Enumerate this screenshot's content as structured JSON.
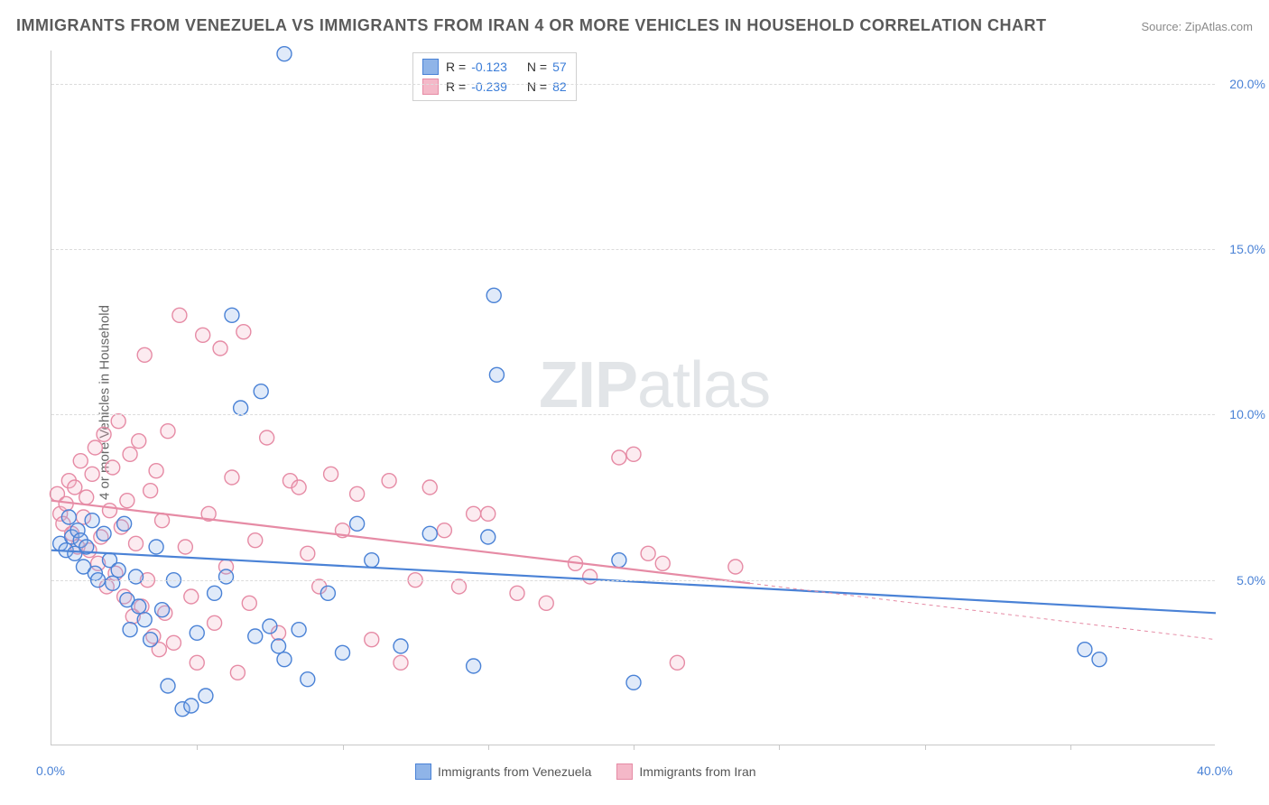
{
  "title": "IMMIGRANTS FROM VENEZUELA VS IMMIGRANTS FROM IRAN 4 OR MORE VEHICLES IN HOUSEHOLD CORRELATION CHART",
  "source_label": "Source: ",
  "source_name": "ZipAtlas.com",
  "y_axis_label": "4 or more Vehicles in Household",
  "watermark_bold": "ZIP",
  "watermark_light": "atlas",
  "chart": {
    "type": "scatter",
    "xlim": [
      0,
      40
    ],
    "ylim": [
      0,
      21
    ],
    "x_ticks": [
      0,
      40
    ],
    "x_tick_labels": [
      "0.0%",
      "40.0%"
    ],
    "x_minor_ticks": [
      5,
      10,
      15,
      20,
      25,
      30,
      35
    ],
    "y_ticks": [
      5,
      10,
      15,
      20
    ],
    "y_tick_labels": [
      "5.0%",
      "10.0%",
      "15.0%",
      "20.0%"
    ],
    "background_color": "#ffffff",
    "grid_color": "#dcdcdc",
    "axis_color": "#c8c8c8",
    "marker_radius": 8,
    "marker_stroke_width": 1.4,
    "marker_fill_opacity": 0.28,
    "line_width": 2.2,
    "series": [
      {
        "name": "Immigrants from Venezuela",
        "color_stroke": "#4a82d6",
        "color_fill": "#8fb4e8",
        "R": "-0.123",
        "N": "57",
        "trend": {
          "x1": 0,
          "y1": 5.9,
          "x2": 40,
          "y2": 4.0
        },
        "points": [
          [
            0.3,
            6.1
          ],
          [
            0.5,
            5.9
          ],
          [
            0.6,
            6.9
          ],
          [
            0.7,
            6.3
          ],
          [
            0.8,
            5.8
          ],
          [
            0.9,
            6.5
          ],
          [
            1.0,
            6.2
          ],
          [
            1.1,
            5.4
          ],
          [
            1.2,
            6.0
          ],
          [
            1.4,
            6.8
          ],
          [
            1.5,
            5.2
          ],
          [
            1.6,
            5.0
          ],
          [
            1.8,
            6.4
          ],
          [
            2.0,
            5.6
          ],
          [
            2.1,
            4.9
          ],
          [
            2.3,
            5.3
          ],
          [
            2.5,
            6.7
          ],
          [
            2.6,
            4.4
          ],
          [
            2.7,
            3.5
          ],
          [
            2.9,
            5.1
          ],
          [
            3.0,
            4.2
          ],
          [
            3.2,
            3.8
          ],
          [
            3.4,
            3.2
          ],
          [
            3.6,
            6.0
          ],
          [
            3.8,
            4.1
          ],
          [
            4.0,
            1.8
          ],
          [
            4.2,
            5.0
          ],
          [
            4.5,
            1.1
          ],
          [
            4.8,
            1.2
          ],
          [
            5.0,
            3.4
          ],
          [
            5.3,
            1.5
          ],
          [
            5.6,
            4.6
          ],
          [
            6.0,
            5.1
          ],
          [
            6.2,
            13.0
          ],
          [
            6.5,
            10.2
          ],
          [
            7.0,
            3.3
          ],
          [
            7.2,
            10.7
          ],
          [
            7.5,
            3.6
          ],
          [
            7.8,
            3.0
          ],
          [
            8.0,
            2.6
          ],
          [
            8.0,
            20.9
          ],
          [
            8.5,
            3.5
          ],
          [
            8.8,
            2.0
          ],
          [
            9.5,
            4.6
          ],
          [
            10.0,
            2.8
          ],
          [
            10.5,
            6.7
          ],
          [
            11.0,
            5.6
          ],
          [
            12.0,
            3.0
          ],
          [
            13.0,
            6.4
          ],
          [
            14.5,
            2.4
          ],
          [
            15.0,
            6.3
          ],
          [
            15.2,
            13.6
          ],
          [
            15.3,
            11.2
          ],
          [
            19.5,
            5.6
          ],
          [
            20.0,
            1.9
          ],
          [
            35.5,
            2.9
          ],
          [
            36.0,
            2.6
          ]
        ]
      },
      {
        "name": "Immigrants from Iran",
        "color_stroke": "#e68ba5",
        "color_fill": "#f4b8c8",
        "R": "-0.239",
        "N": "82",
        "trend": {
          "x1": 0,
          "y1": 7.4,
          "x2": 24,
          "y2": 4.9
        },
        "trend_ext": {
          "x1": 24,
          "y1": 4.9,
          "x2": 40,
          "y2": 3.2
        },
        "points": [
          [
            0.2,
            7.6
          ],
          [
            0.3,
            7.0
          ],
          [
            0.4,
            6.7
          ],
          [
            0.5,
            7.3
          ],
          [
            0.6,
            8.0
          ],
          [
            0.7,
            6.4
          ],
          [
            0.8,
            7.8
          ],
          [
            0.9,
            6.0
          ],
          [
            1.0,
            8.6
          ],
          [
            1.1,
            6.9
          ],
          [
            1.2,
            7.5
          ],
          [
            1.3,
            5.9
          ],
          [
            1.4,
            8.2
          ],
          [
            1.5,
            9.0
          ],
          [
            1.6,
            5.5
          ],
          [
            1.7,
            6.3
          ],
          [
            1.8,
            9.4
          ],
          [
            1.9,
            4.8
          ],
          [
            2.0,
            7.1
          ],
          [
            2.1,
            8.4
          ],
          [
            2.2,
            5.2
          ],
          [
            2.3,
            9.8
          ],
          [
            2.4,
            6.6
          ],
          [
            2.5,
            4.5
          ],
          [
            2.6,
            7.4
          ],
          [
            2.7,
            8.8
          ],
          [
            2.8,
            3.9
          ],
          [
            2.9,
            6.1
          ],
          [
            3.0,
            9.2
          ],
          [
            3.1,
            4.2
          ],
          [
            3.2,
            11.8
          ],
          [
            3.3,
            5.0
          ],
          [
            3.4,
            7.7
          ],
          [
            3.5,
            3.3
          ],
          [
            3.6,
            8.3
          ],
          [
            3.7,
            2.9
          ],
          [
            3.8,
            6.8
          ],
          [
            3.9,
            4.0
          ],
          [
            4.0,
            9.5
          ],
          [
            4.2,
            3.1
          ],
          [
            4.4,
            13.0
          ],
          [
            4.6,
            6.0
          ],
          [
            4.8,
            4.5
          ],
          [
            5.0,
            2.5
          ],
          [
            5.2,
            12.4
          ],
          [
            5.4,
            7.0
          ],
          [
            5.6,
            3.7
          ],
          [
            5.8,
            12.0
          ],
          [
            6.0,
            5.4
          ],
          [
            6.2,
            8.1
          ],
          [
            6.4,
            2.2
          ],
          [
            6.6,
            12.5
          ],
          [
            6.8,
            4.3
          ],
          [
            7.0,
            6.2
          ],
          [
            7.4,
            9.3
          ],
          [
            7.8,
            3.4
          ],
          [
            8.2,
            8.0
          ],
          [
            8.5,
            7.8
          ],
          [
            8.8,
            5.8
          ],
          [
            9.2,
            4.8
          ],
          [
            9.6,
            8.2
          ],
          [
            10.0,
            6.5
          ],
          [
            10.5,
            7.6
          ],
          [
            11.0,
            3.2
          ],
          [
            11.6,
            8.0
          ],
          [
            12.0,
            2.5
          ],
          [
            12.5,
            5.0
          ],
          [
            13.0,
            7.8
          ],
          [
            13.5,
            6.5
          ],
          [
            14.0,
            4.8
          ],
          [
            14.5,
            7.0
          ],
          [
            15.0,
            7.0
          ],
          [
            16.0,
            4.6
          ],
          [
            17.0,
            4.3
          ],
          [
            18.0,
            5.5
          ],
          [
            18.5,
            5.1
          ],
          [
            19.5,
            8.7
          ],
          [
            20.0,
            8.8
          ],
          [
            20.5,
            5.8
          ],
          [
            21.0,
            5.5
          ],
          [
            21.5,
            2.5
          ],
          [
            23.5,
            5.4
          ]
        ]
      }
    ]
  },
  "legend_top": {
    "r_label": "R =",
    "n_label": "N ="
  },
  "bottom_legend": {
    "items": [
      "Immigrants from Venezuela",
      "Immigrants from Iran"
    ]
  }
}
